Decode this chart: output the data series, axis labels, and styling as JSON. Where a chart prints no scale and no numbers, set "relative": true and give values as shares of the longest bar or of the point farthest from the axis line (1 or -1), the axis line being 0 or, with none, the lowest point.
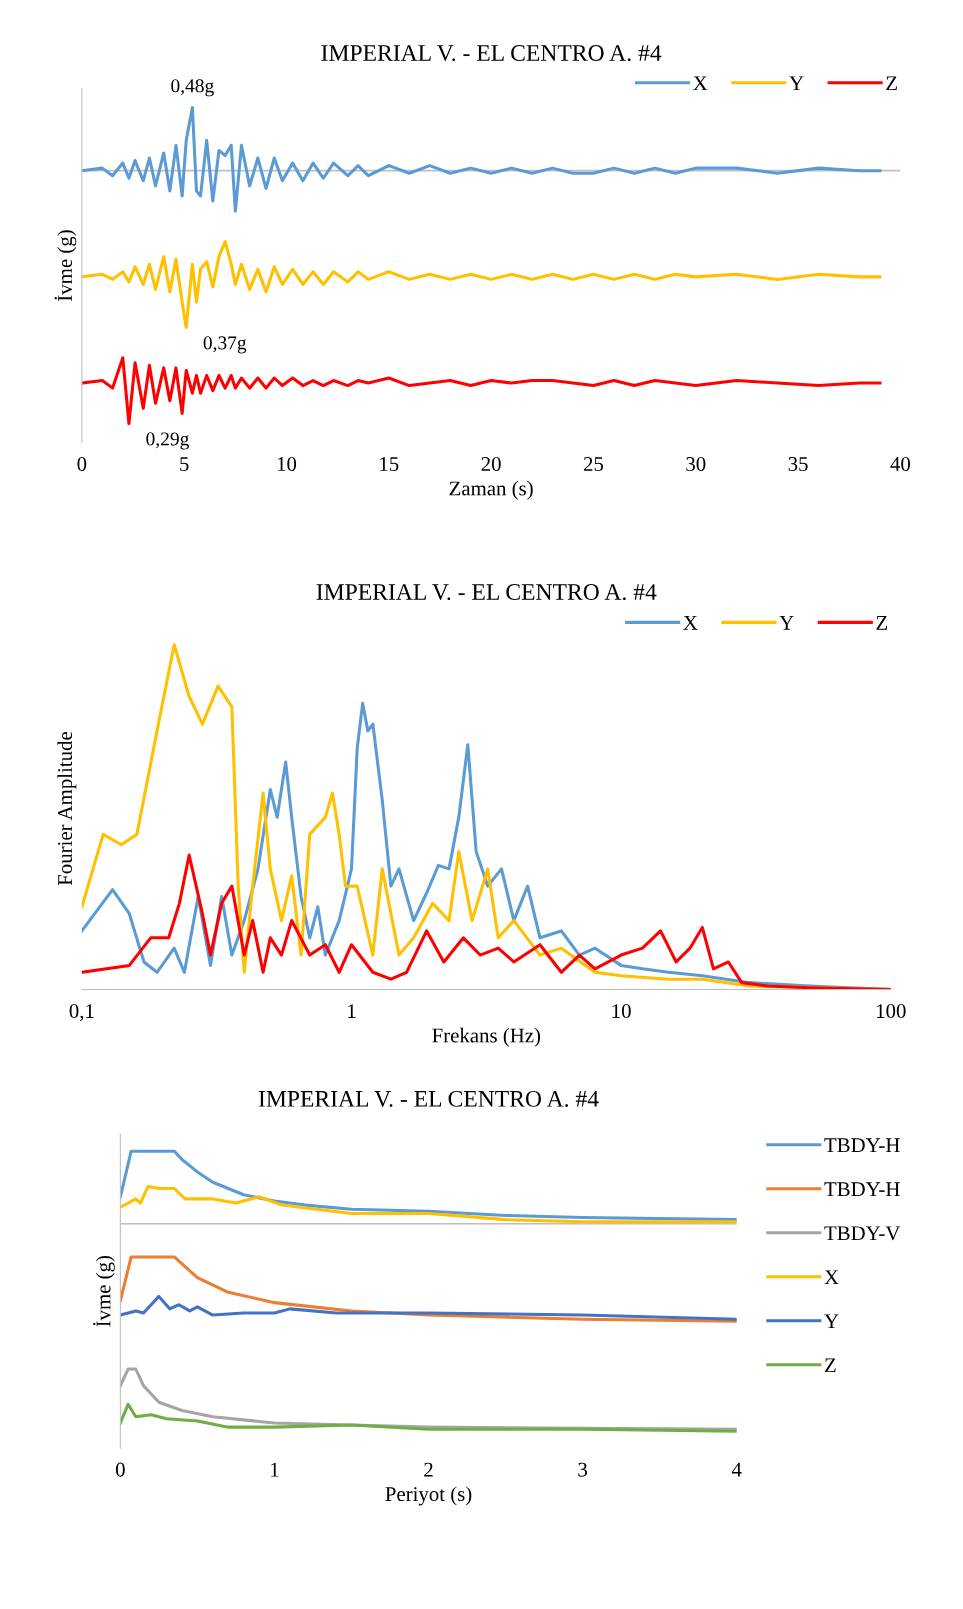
{
  "chart_data": [
    {
      "type": "line",
      "title": "IMPERIAL V. - EL CENTRO A. #4",
      "xlabel": "Zaman (s)",
      "ylabel": "İvme (g)",
      "relative": true,
      "legend": "top right",
      "grid": false,
      "xlim": [
        0,
        40
      ],
      "xticks": [
        0,
        5,
        10,
        15,
        20,
        25,
        30,
        35,
        40
      ],
      "x": [
        0,
        1,
        1.5,
        2,
        2.3,
        2.6,
        3,
        3.3,
        3.6,
        4,
        4.3,
        4.6,
        4.9,
        5.1,
        5.4,
        5.6,
        5.8,
        6.1,
        6.4,
        6.7,
        7,
        7.3,
        7.5,
        7.8,
        8.2,
        8.6,
        9,
        9.4,
        9.8,
        10.3,
        10.8,
        11.3,
        11.8,
        12.3,
        13,
        13.5,
        14,
        15,
        16,
        17,
        18,
        19,
        20,
        21,
        22,
        23,
        24,
        25,
        26,
        27,
        28,
        29,
        30,
        32,
        34,
        36,
        38,
        39
      ],
      "series": [
        {
          "name": "X",
          "color": "#5b9bd5",
          "values": [
            0,
            0.01,
            -0.02,
            0.03,
            -0.03,
            0.04,
            -0.04,
            0.05,
            -0.06,
            0.07,
            -0.08,
            0.1,
            -0.1,
            0.12,
            0.25,
            -0.08,
            -0.1,
            0.12,
            -0.12,
            0.08,
            0.06,
            0.1,
            -0.16,
            0.1,
            -0.06,
            0.05,
            -0.07,
            0.05,
            -0.04,
            0.03,
            -0.04,
            0.03,
            -0.03,
            0.03,
            -0.02,
            0.02,
            -0.02,
            0.02,
            -0.01,
            0.02,
            -0.01,
            0.01,
            -0.01,
            0.01,
            -0.01,
            0.01,
            -0.01,
            -0.01,
            0.01,
            -0.01,
            0.01,
            -0.01,
            0.01,
            0.01,
            -0.01,
            0.01,
            0,
            0
          ]
        },
        {
          "name": "Y",
          "color": "#ffc000",
          "values": [
            -0.42,
            -0.41,
            -0.43,
            -0.4,
            -0.44,
            -0.38,
            -0.45,
            -0.37,
            -0.47,
            -0.34,
            -0.48,
            -0.35,
            -0.52,
            -0.62,
            -0.37,
            -0.52,
            -0.39,
            -0.36,
            -0.46,
            -0.34,
            -0.28,
            -0.37,
            -0.45,
            -0.37,
            -0.47,
            -0.39,
            -0.48,
            -0.38,
            -0.45,
            -0.39,
            -0.45,
            -0.4,
            -0.45,
            -0.4,
            -0.44,
            -0.4,
            -0.43,
            -0.4,
            -0.43,
            -0.41,
            -0.43,
            -0.41,
            -0.43,
            -0.41,
            -0.43,
            -0.41,
            -0.43,
            -0.41,
            -0.43,
            -0.41,
            -0.43,
            -0.41,
            -0.42,
            -0.41,
            -0.43,
            -0.41,
            -0.42,
            -0.42
          ]
        },
        {
          "name": "Z",
          "color": "#ff0000",
          "values": [
            -0.84,
            -0.83,
            -0.86,
            -0.74,
            -1.0,
            -0.76,
            -0.94,
            -0.77,
            -0.92,
            -0.78,
            -0.91,
            -0.78,
            -0.96,
            -0.79,
            -0.88,
            -0.81,
            -0.88,
            -0.81,
            -0.87,
            -0.81,
            -0.86,
            -0.81,
            -0.86,
            -0.82,
            -0.86,
            -0.82,
            -0.86,
            -0.82,
            -0.85,
            -0.82,
            -0.85,
            -0.83,
            -0.85,
            -0.83,
            -0.85,
            -0.83,
            -0.84,
            -0.82,
            -0.85,
            -0.84,
            -0.83,
            -0.85,
            -0.83,
            -0.84,
            -0.83,
            -0.83,
            -0.84,
            -0.85,
            -0.83,
            -0.85,
            -0.83,
            -0.84,
            -0.85,
            -0.83,
            -0.84,
            -0.85,
            -0.84,
            -0.84
          ]
        }
      ],
      "annotations": [
        {
          "text": "0,48g",
          "x": 5.4,
          "y": 0.25
        },
        {
          "text": "0,37g",
          "x": 5.1,
          "y": -0.62
        },
        {
          "text": "0,29g",
          "x": 2.3,
          "y": -1.0
        }
      ]
    },
    {
      "type": "line",
      "title": "IMPERIAL V. - EL CENTRO A. #4",
      "xlabel": "Frekans (Hz)",
      "ylabel": "Fourier Amplitude",
      "relative": true,
      "legend": "top right",
      "grid": false,
      "log": "x",
      "xlim": [
        0.1,
        100
      ],
      "xticks": [
        {
          "value": 0.1,
          "label": "0,1"
        },
        1,
        10,
        100
      ],
      "series": [
        {
          "name": "X",
          "color": "#5b9bd5",
          "x": [
            0.1,
            0.13,
            0.15,
            0.17,
            0.19,
            0.22,
            0.24,
            0.27,
            0.3,
            0.33,
            0.36,
            0.4,
            0.45,
            0.5,
            0.53,
            0.57,
            0.6,
            0.65,
            0.7,
            0.75,
            0.8,
            0.9,
            1.0,
            1.05,
            1.1,
            1.15,
            1.2,
            1.3,
            1.4,
            1.5,
            1.7,
            1.9,
            2.1,
            2.3,
            2.5,
            2.7,
            2.9,
            3.2,
            3.6,
            4,
            4.5,
            5,
            6,
            7,
            8,
            10,
            12,
            15,
            20,
            30,
            50,
            100
          ],
          "values": [
            0.17,
            0.29,
            0.22,
            0.08,
            0.05,
            0.12,
            0.05,
            0.27,
            0.07,
            0.27,
            0.1,
            0.2,
            0.35,
            0.58,
            0.5,
            0.66,
            0.5,
            0.27,
            0.15,
            0.24,
            0.1,
            0.2,
            0.35,
            0.7,
            0.83,
            0.75,
            0.77,
            0.55,
            0.3,
            0.35,
            0.2,
            0.28,
            0.36,
            0.35,
            0.5,
            0.71,
            0.4,
            0.3,
            0.35,
            0.2,
            0.3,
            0.15,
            0.17,
            0.1,
            0.12,
            0.07,
            0.06,
            0.05,
            0.04,
            0.02,
            0.01,
            0
          ]
        },
        {
          "name": "Y",
          "color": "#ffc000",
          "x": [
            0.1,
            0.12,
            0.14,
            0.16,
            0.19,
            0.22,
            0.25,
            0.28,
            0.32,
            0.36,
            0.38,
            0.4,
            0.43,
            0.47,
            0.5,
            0.55,
            0.6,
            0.65,
            0.7,
            0.8,
            0.85,
            0.9,
            0.95,
            1.05,
            1.2,
            1.3,
            1.5,
            1.7,
            2,
            2.3,
            2.5,
            2.8,
            3.2,
            3.5,
            4,
            5,
            6,
            8,
            10,
            15,
            20,
            30,
            100
          ],
          "values": [
            0.24,
            0.45,
            0.42,
            0.45,
            0.75,
            1.0,
            0.85,
            0.77,
            0.88,
            0.82,
            0.3,
            0.05,
            0.3,
            0.57,
            0.35,
            0.2,
            0.33,
            0.1,
            0.45,
            0.5,
            0.57,
            0.45,
            0.3,
            0.3,
            0.1,
            0.35,
            0.1,
            0.15,
            0.25,
            0.2,
            0.4,
            0.2,
            0.35,
            0.15,
            0.2,
            0.1,
            0.12,
            0.05,
            0.04,
            0.03,
            0.03,
            0.01,
            0
          ]
        },
        {
          "name": "Z",
          "color": "#ff0000",
          "x": [
            0.1,
            0.15,
            0.18,
            0.21,
            0.23,
            0.25,
            0.28,
            0.3,
            0.33,
            0.36,
            0.4,
            0.43,
            0.47,
            0.5,
            0.55,
            0.6,
            0.7,
            0.8,
            0.9,
            1,
            1.2,
            1.4,
            1.6,
            1.9,
            2.2,
            2.6,
            3,
            3.5,
            4,
            5,
            6,
            7,
            8,
            10,
            12,
            14,
            16,
            18,
            20,
            22,
            25,
            28,
            35,
            50,
            100
          ],
          "values": [
            0.05,
            0.07,
            0.15,
            0.15,
            0.25,
            0.39,
            0.22,
            0.1,
            0.25,
            0.3,
            0.1,
            0.2,
            0.05,
            0.15,
            0.1,
            0.2,
            0.1,
            0.13,
            0.05,
            0.13,
            0.05,
            0.03,
            0.05,
            0.17,
            0.08,
            0.15,
            0.1,
            0.12,
            0.08,
            0.13,
            0.05,
            0.1,
            0.06,
            0.1,
            0.12,
            0.17,
            0.08,
            0.12,
            0.18,
            0.06,
            0.08,
            0.02,
            0.01,
            0.005,
            0
          ]
        }
      ]
    },
    {
      "type": "line",
      "title": "IMPERIAL V. - EL CENTRO A. #4",
      "xlabel": "Periyot (s)",
      "ylabel": "İvme (g)",
      "relative": true,
      "legend": "right",
      "grid": false,
      "xlim": [
        0,
        4
      ],
      "xticks": [
        0,
        1,
        2,
        3,
        4
      ],
      "series": [
        {
          "name": "TBDY-H",
          "color": "#5b9bd5",
          "x": [
            0,
            0.07,
            0.35,
            0.4,
            0.5,
            0.6,
            0.7,
            0.8,
            1,
            1.2,
            1.5,
            2,
            2.5,
            3,
            4
          ],
          "values": [
            0.13,
            0.35,
            0.35,
            0.31,
            0.25,
            0.2,
            0.17,
            0.14,
            0.11,
            0.09,
            0.07,
            0.06,
            0.04,
            0.03,
            0.02
          ]
        },
        {
          "name": "TBDY-H",
          "color": "#ed7d31",
          "x": [
            0,
            0.07,
            0.35,
            0.5,
            0.7,
            1,
            1.5,
            2,
            3,
            4
          ],
          "values": [
            -0.37,
            -0.16,
            -0.16,
            -0.26,
            -0.33,
            -0.38,
            -0.42,
            -0.44,
            -0.46,
            -0.47
          ]
        },
        {
          "name": "TBDY-V",
          "color": "#a5a5a5",
          "x": [
            0,
            0.05,
            0.1,
            0.15,
            0.25,
            0.4,
            0.6,
            1,
            1.5,
            2,
            4
          ],
          "values": [
            -0.78,
            -0.7,
            -0.7,
            -0.78,
            -0.86,
            -0.9,
            -0.93,
            -0.96,
            -0.97,
            -0.98,
            -0.99
          ]
        },
        {
          "name": "X",
          "color": "#ffc000",
          "x": [
            0,
            0.05,
            0.1,
            0.13,
            0.18,
            0.25,
            0.35,
            0.42,
            0.6,
            0.75,
            0.9,
            1.05,
            1.5,
            2,
            2.5,
            3,
            4
          ],
          "values": [
            0.08,
            0.1,
            0.12,
            0.1,
            0.18,
            0.17,
            0.17,
            0.12,
            0.12,
            0.1,
            0.13,
            0.09,
            0.05,
            0.05,
            0.02,
            0.01,
            0.01
          ]
        },
        {
          "name": "Y",
          "color": "#4472c4",
          "x": [
            0,
            0.1,
            0.15,
            0.25,
            0.32,
            0.38,
            0.45,
            0.5,
            0.6,
            0.8,
            1.0,
            1.1,
            1.4,
            2,
            3,
            4
          ],
          "values": [
            -0.44,
            -0.42,
            -0.43,
            -0.35,
            -0.41,
            -0.39,
            -0.42,
            -0.4,
            -0.44,
            -0.43,
            -0.43,
            -0.41,
            -0.43,
            -0.43,
            -0.44,
            -0.46
          ]
        },
        {
          "name": "Z",
          "color": "#70ad47",
          "x": [
            0,
            0.05,
            0.1,
            0.2,
            0.3,
            0.5,
            0.7,
            1,
            1.5,
            2,
            3,
            4
          ],
          "values": [
            -0.96,
            -0.87,
            -0.93,
            -0.92,
            -0.94,
            -0.95,
            -0.98,
            -0.98,
            -0.97,
            -0.99,
            -0.99,
            -1.0
          ]
        }
      ]
    }
  ]
}
